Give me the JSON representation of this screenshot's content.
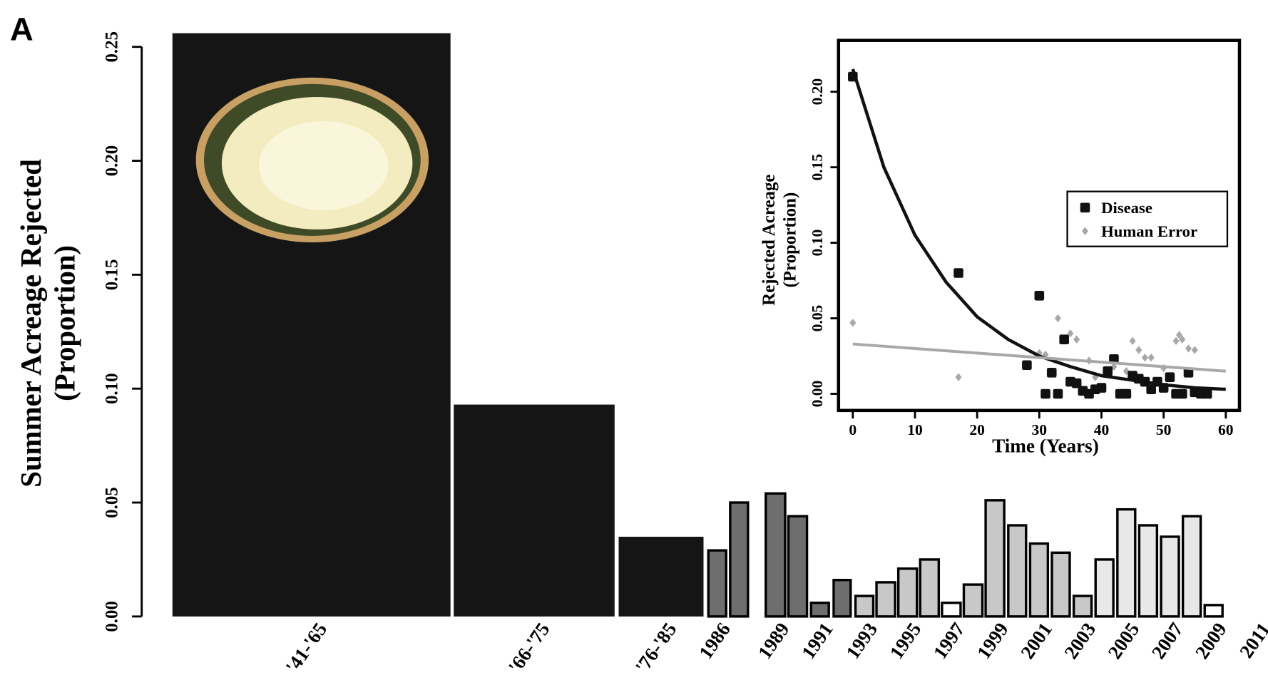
{
  "chart_data": [
    {
      "type": "bar",
      "panel_label": "A",
      "ylabel": [
        "Summer Acreage Rejected",
        "(Proportion)"
      ],
      "categories": [
        "'41-'65",
        "'66-'75",
        "'76-'85",
        "1986",
        null,
        null,
        "1989",
        null,
        "1991",
        null,
        "1993",
        null,
        "1995",
        null,
        "1997",
        null,
        "1999",
        null,
        "2001",
        null,
        "2003",
        null,
        "2005",
        null,
        "2007",
        null,
        "2009",
        null,
        "2011"
      ],
      "values": [
        0.256,
        0.093,
        0.035,
        0.029,
        0.05,
        null,
        0.054,
        0.044,
        0.006,
        0.016,
        0.009,
        0.015,
        0.021,
        0.025,
        0.006,
        0.014,
        0.051,
        0.04,
        0.032,
        0.028,
        0.009,
        0.025,
        0.047,
        0.04,
        0.035,
        0.044,
        0.005,
        0,
        0
      ],
      "colors": [
        "#151515",
        "#151515",
        "#151515",
        "#6e6e6e",
        "#6e6e6e",
        null,
        "#6e6e6e",
        "#6e6e6e",
        "#6e6e6e",
        "#6e6e6e",
        "#c8c8c8",
        "#c8c8c8",
        "#c8c8c8",
        "#c8c8c8",
        "#ffffff",
        "#c8c8c8",
        "#c8c8c8",
        "#c8c8c8",
        "#c8c8c8",
        "#c8c8c8",
        "#c8c8c8",
        "#e8e8e8",
        "#e8e8e8",
        "#e8e8e8",
        "#e8e8e8",
        "#e8e8e8",
        "#ffffff",
        "#ffffff",
        "#ffffff"
      ],
      "ylim": [
        0,
        0.25
      ],
      "yticks": [
        {
          "value": 0,
          "label": "0.00"
        },
        {
          "value": 0.05,
          "label": "0.05"
        },
        {
          "value": 0.1,
          "label": "0.10"
        },
        {
          "value": 0.15,
          "label": "0.15"
        },
        {
          "value": 0.2,
          "label": "0.20"
        },
        {
          "value": 0.25,
          "label": "0.25"
        }
      ]
    },
    {
      "type": "scatter",
      "xlabel": "Time (Years)",
      "ylabel": [
        "Rejected Acreage",
        "(Proportion)"
      ],
      "xlim": [
        -2.3,
        62.2
      ],
      "ylim": [
        -0.011,
        0.234
      ],
      "xticks": [
        0,
        10,
        20,
        30,
        40,
        50,
        60
      ],
      "yticks": [
        {
          "value": 0,
          "label": "0.00"
        },
        {
          "value": 0.05,
          "label": "0.05"
        },
        {
          "value": 0.1,
          "label": "0.10"
        },
        {
          "value": 0.15,
          "label": "0.15"
        },
        {
          "value": 0.2,
          "label": "0.20"
        }
      ],
      "series": [
        {
          "name": "Disease",
          "color": "#111111",
          "marker": "square",
          "x": [
            0,
            17,
            30,
            28,
            31,
            32,
            33,
            34,
            35,
            36,
            37,
            38,
            39,
            40,
            41,
            42,
            43,
            44,
            45,
            46,
            47,
            48,
            49,
            50,
            51,
            52,
            53,
            54,
            55,
            56,
            57
          ],
          "values": [
            0.21,
            0.08,
            0.065,
            0.019,
            0,
            0.014,
            0,
            0.036,
            0.008,
            0.007,
            0.002,
            0,
            0.003,
            0.004,
            0.015,
            0.023,
            0,
            0,
            0.012,
            0.01,
            0.008,
            0.003,
            0.008,
            0.004,
            0.011,
            0,
            0,
            0.014,
            0.001,
            0,
            0
          ]
        },
        {
          "name": "Human Error",
          "color": "#a8a8a8",
          "marker": "diamond",
          "x": [
            0,
            17,
            30,
            31,
            33,
            35,
            36,
            38,
            39,
            42,
            44,
            45,
            46,
            47,
            48,
            50,
            51,
            52,
            52.5,
            53,
            54,
            55
          ],
          "values": [
            0.047,
            0.011,
            0.027,
            0.026,
            0.05,
            0.04,
            0.036,
            0.022,
            0.011,
            0.018,
            0.015,
            0.035,
            0.029,
            0.024,
            0.024,
            0.017,
            0.012,
            0.035,
            0.039,
            0.036,
            0.03,
            0.029
          ]
        }
      ],
      "fit_lines": [
        {
          "color": "#111111",
          "x": [
            0,
            5,
            10,
            15,
            20,
            25,
            30,
            35,
            40,
            45,
            50,
            55,
            60
          ],
          "values": [
            0.215,
            0.15,
            0.105,
            0.074,
            0.051,
            0.036,
            0.025,
            0.018,
            0.012,
            0.009,
            0.006,
            0.004,
            0.003
          ]
        },
        {
          "color": "#a8a8a8",
          "x": [
            0,
            60
          ],
          "values": [
            0.033,
            0.015
          ]
        }
      ]
    }
  ]
}
